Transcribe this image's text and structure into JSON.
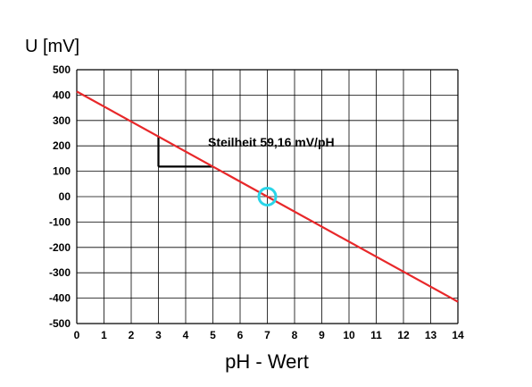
{
  "chart_data": {
    "type": "line",
    "xlabel": "pH - Wert",
    "ylabel": "U [mV]",
    "xlim": [
      0,
      14
    ],
    "ylim": [
      -500,
      500
    ],
    "grid": true,
    "x_ticks": [
      "0",
      "1",
      "2",
      "3",
      "4",
      "5",
      "6",
      "7",
      "8",
      "9",
      "10",
      "11",
      "12",
      "13",
      "14"
    ],
    "y_ticks": [
      "500",
      "400",
      "300",
      "200",
      "100",
      "00",
      "-100",
      "-200",
      "-300",
      "-400",
      "-500"
    ],
    "series": [
      {
        "x": [
          0,
          14
        ],
        "y": [
          414.12,
          -414.12
        ]
      }
    ],
    "annotation": "Steilheit   59,16 mV/pH",
    "marker_point": {
      "x": 7,
      "y": 0
    },
    "slope_triangle": {
      "x_start": 3,
      "x_end": 5,
      "y_top": 236.6,
      "y_bottom": 118.3
    },
    "colors": {
      "line": "#e8282a",
      "marker": "#29d5e8",
      "grid": "#000000"
    }
  }
}
